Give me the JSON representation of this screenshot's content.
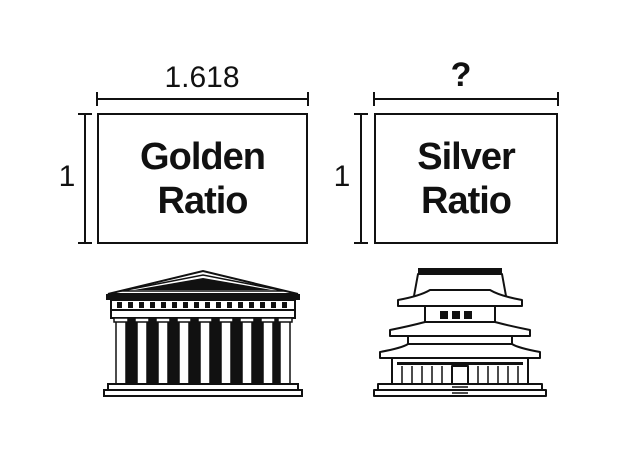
{
  "golden": {
    "width_label": "1.618",
    "height_label": "1",
    "title_line1": "Golden",
    "title_line2": "Ratio"
  },
  "silver": {
    "width_label": "?",
    "height_label": "1",
    "title_line1": "Silver",
    "title_line2": "Ratio"
  },
  "icons": {
    "left": "greek-temple-icon",
    "right": "japanese-pagoda-icon"
  },
  "colors": {
    "ink": "#111111",
    "background": "#ffffff"
  }
}
